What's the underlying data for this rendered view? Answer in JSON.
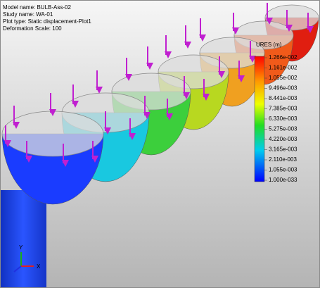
{
  "header": {
    "lines": [
      "Model name: BULB-Ass-02",
      "Study name: WA-01",
      "Plot type: Static displacement-Plot1",
      "Deformation Scale: 100"
    ]
  },
  "legend": {
    "title": "URES (m)",
    "labels": [
      "1.266e-002",
      "1.161e-002",
      "1.055e-002",
      "9.496e-003",
      "8.441e-003",
      "7.385e-003",
      "6.330e-003",
      "5.275e-003",
      "4.220e-003",
      "3.165e-003",
      "2.110e-003",
      "1.055e-003",
      "1.000e-033"
    ]
  },
  "triad": {
    "x": "X",
    "y": "Y"
  }
}
